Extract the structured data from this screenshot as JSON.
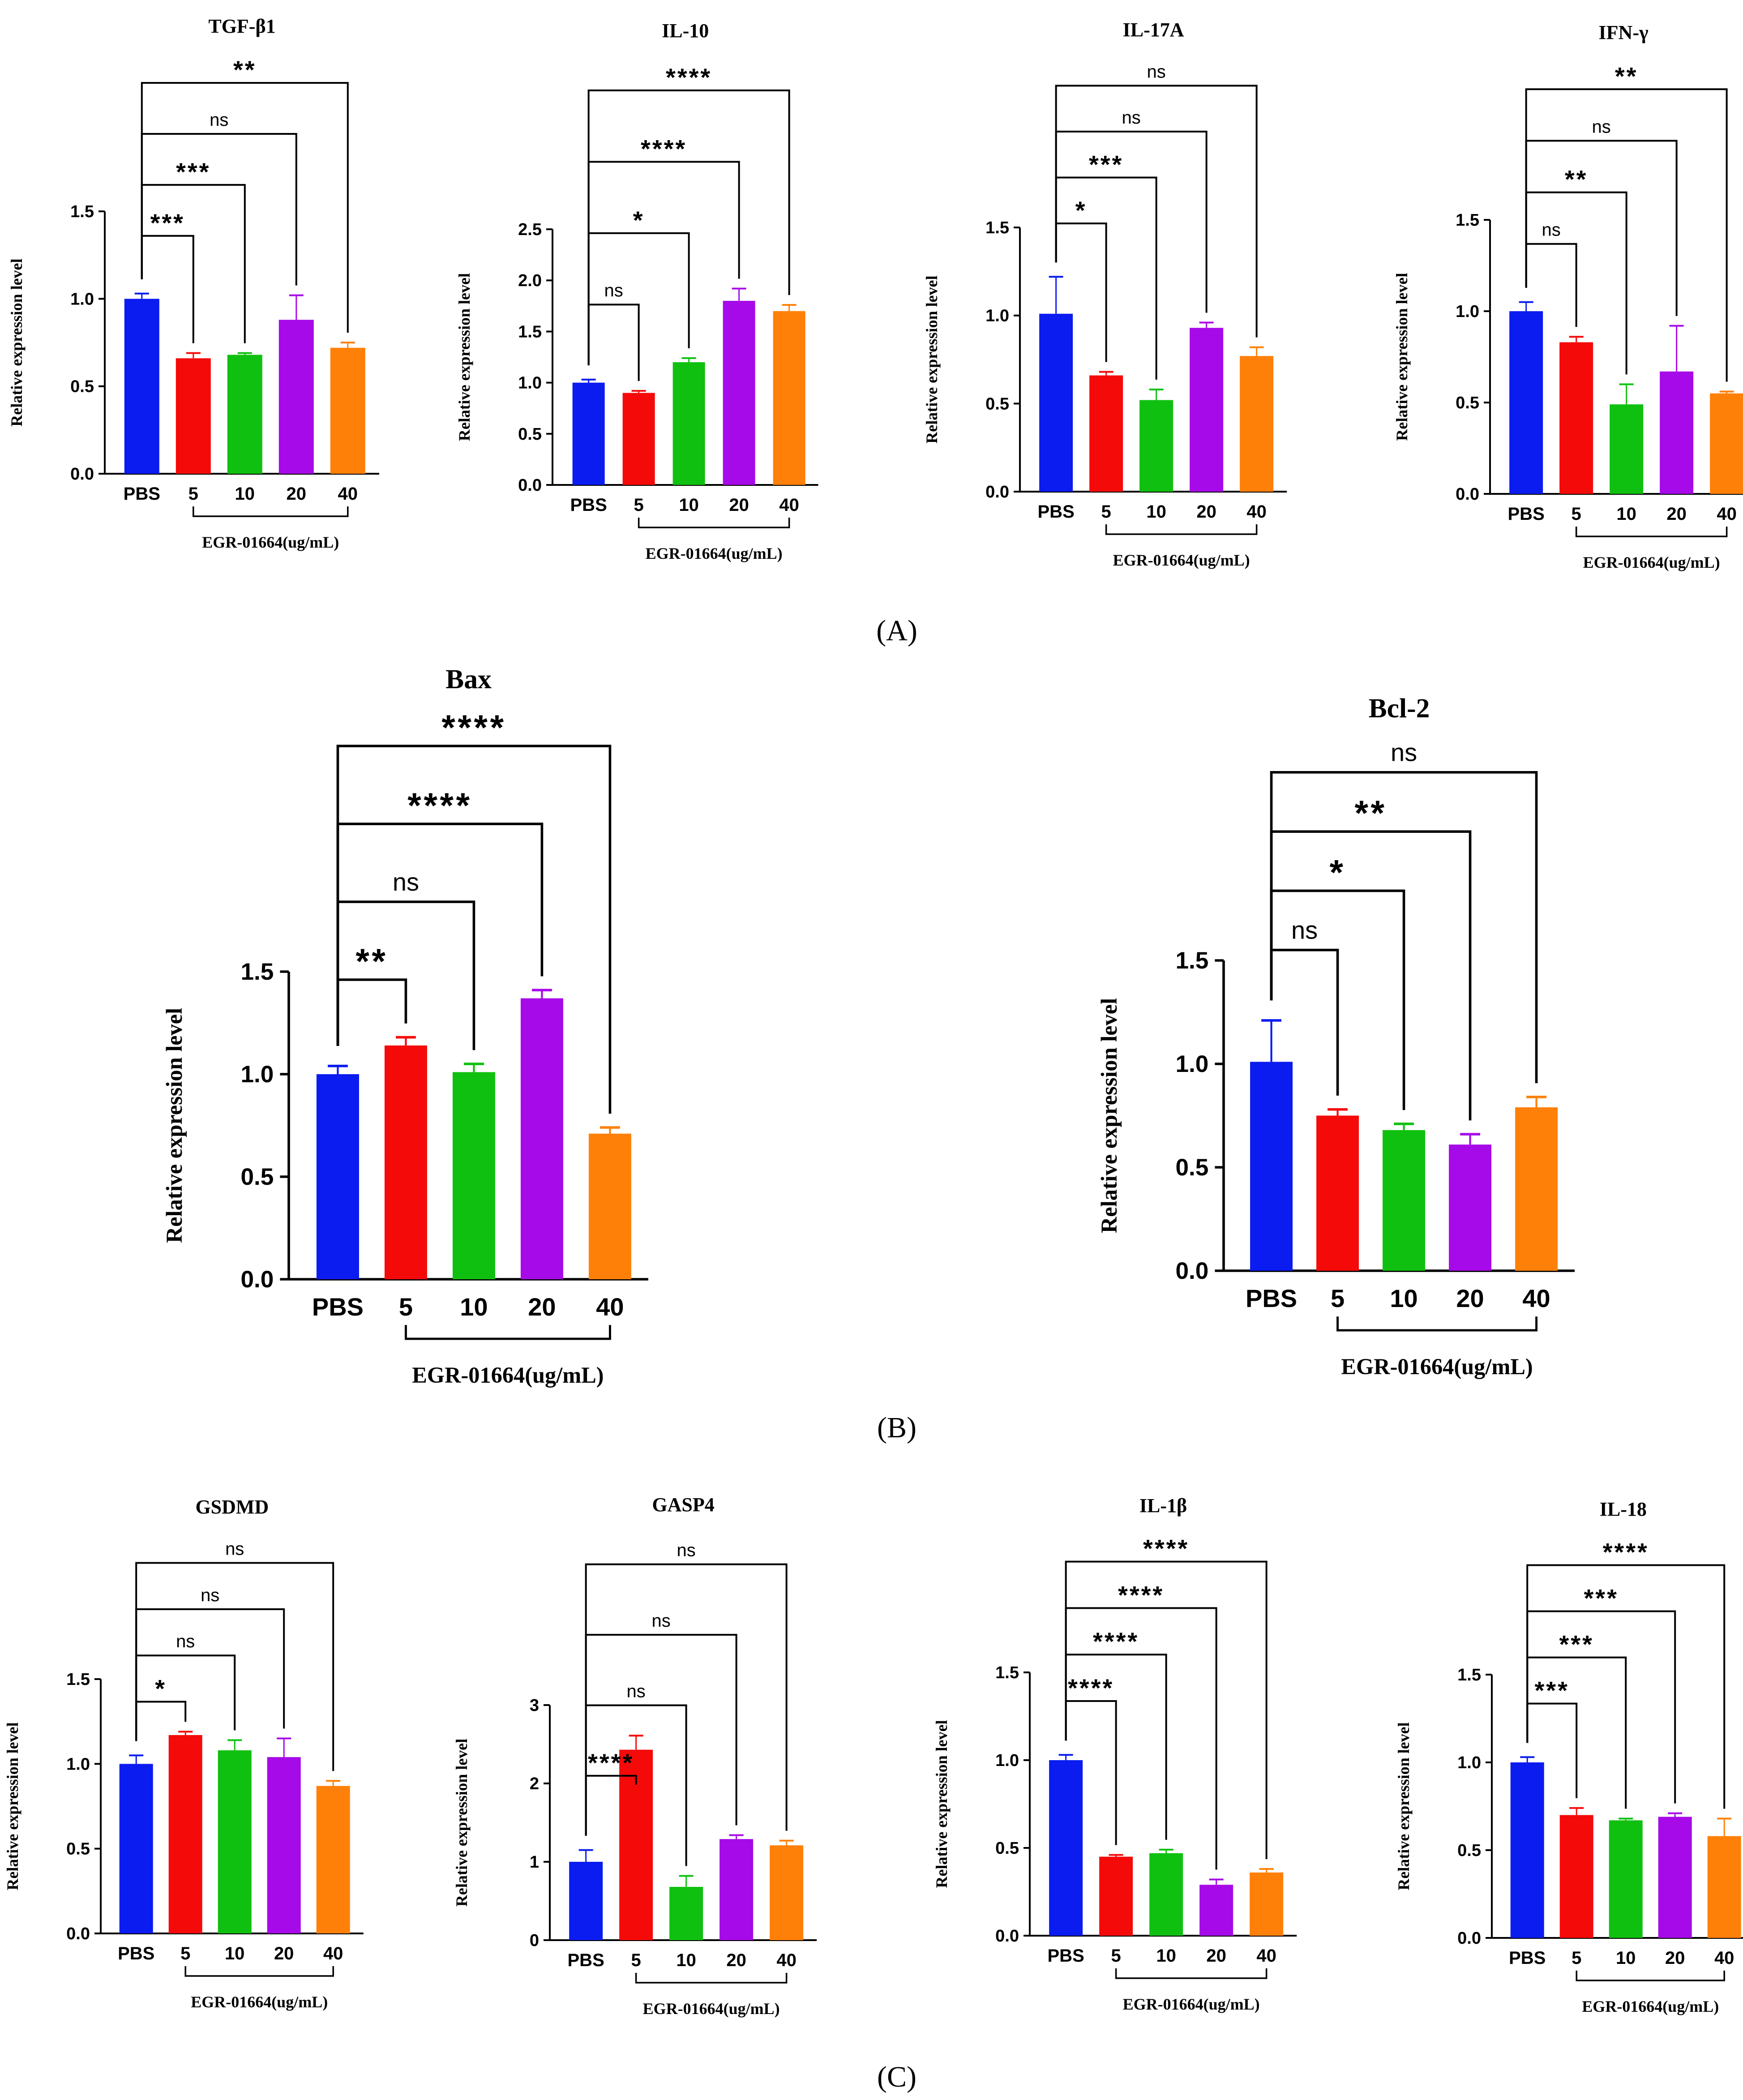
{
  "colors": [
    "#0a1cf0",
    "#f50a0a",
    "#10c010",
    "#a60ae8",
    "#ff8008"
  ],
  "panel_labels": [
    "(A)",
    "(B)",
    "(C)"
  ],
  "chart_data": [
    {
      "id": "tgfb1",
      "type": "bar",
      "title": "TGF-β1",
      "categories": [
        "PBS",
        "5",
        "10",
        "20",
        "40"
      ],
      "values": [
        1.0,
        0.66,
        0.68,
        0.88,
        0.72
      ],
      "errors": [
        0.03,
        0.03,
        0.01,
        0.14,
        0.03
      ],
      "ylim": [
        0,
        1.5
      ],
      "yticks": [
        "0.0",
        "0.5",
        "1.0",
        "1.5"
      ],
      "ylabel": "Relative expression level",
      "xlabel": "EGR-01664(ug/mL)",
      "significance": [
        {
          "to": "5",
          "label": "***"
        },
        {
          "to": "10",
          "label": "***"
        },
        {
          "to": "20",
          "label": "ns"
        },
        {
          "to": "40",
          "label": "**"
        }
      ]
    },
    {
      "id": "il10",
      "type": "bar",
      "title": "IL-10",
      "categories": [
        "PBS",
        "5",
        "10",
        "20",
        "40"
      ],
      "values": [
        1.0,
        0.9,
        1.2,
        1.8,
        1.7
      ],
      "errors": [
        0.03,
        0.02,
        0.04,
        0.12,
        0.06
      ],
      "ylim": [
        0,
        2.5
      ],
      "yticks": [
        "0.0",
        "0.5",
        "1.0",
        "1.5",
        "2.0",
        "2.5"
      ],
      "ylabel": "Relative expression level",
      "xlabel": "EGR-01664(ug/mL)",
      "significance": [
        {
          "to": "5",
          "label": "ns"
        },
        {
          "to": "10",
          "label": "*"
        },
        {
          "to": "20",
          "label": "****"
        },
        {
          "to": "40",
          "label": "****"
        }
      ]
    },
    {
      "id": "il17a",
      "type": "bar",
      "title": "IL-17A",
      "categories": [
        "PBS",
        "5",
        "10",
        "20",
        "40"
      ],
      "values": [
        1.01,
        0.66,
        0.52,
        0.93,
        0.77
      ],
      "errors": [
        0.21,
        0.02,
        0.06,
        0.03,
        0.05
      ],
      "ylim": [
        0,
        1.5
      ],
      "yticks": [
        "0.0",
        "0.5",
        "1.0",
        "1.5"
      ],
      "ylabel": "Relative expression level",
      "xlabel": "EGR-01664(ug/mL)",
      "significance": [
        {
          "to": "5",
          "label": "*"
        },
        {
          "to": "10",
          "label": "***"
        },
        {
          "to": "20",
          "label": "ns"
        },
        {
          "to": "40",
          "label": "ns"
        }
      ]
    },
    {
      "id": "ifng",
      "type": "bar",
      "title": "IFN-γ",
      "categories": [
        "PBS",
        "5",
        "10",
        "20",
        "40"
      ],
      "values": [
        1.0,
        0.83,
        0.49,
        0.67,
        0.55
      ],
      "errors": [
        0.05,
        0.03,
        0.11,
        0.25,
        0.01
      ],
      "ylim": [
        0,
        1.5
      ],
      "yticks": [
        "0.0",
        "0.5",
        "1.0",
        "1.5"
      ],
      "ylabel": "Relative expression level",
      "xlabel": "EGR-01664(ug/mL)",
      "significance": [
        {
          "to": "5",
          "label": "ns"
        },
        {
          "to": "10",
          "label": "**"
        },
        {
          "to": "20",
          "label": "ns"
        },
        {
          "to": "40",
          "label": "**"
        }
      ]
    },
    {
      "id": "bax",
      "type": "bar",
      "title": "Bax",
      "categories": [
        "PBS",
        "5",
        "10",
        "20",
        "40"
      ],
      "values": [
        1.0,
        1.14,
        1.01,
        1.37,
        0.71
      ],
      "errors": [
        0.04,
        0.04,
        0.04,
        0.04,
        0.03
      ],
      "ylim": [
        0,
        1.5
      ],
      "yticks": [
        "0.0",
        "0.5",
        "1.0",
        "1.5"
      ],
      "ylabel": "Relative expression level",
      "xlabel": "EGR-01664(ug/mL)",
      "significance": [
        {
          "to": "5",
          "label": "**"
        },
        {
          "to": "10",
          "label": "ns"
        },
        {
          "to": "20",
          "label": "****"
        },
        {
          "to": "40",
          "label": "****"
        }
      ]
    },
    {
      "id": "bcl2",
      "type": "bar",
      "title": "Bcl-2",
      "categories": [
        "PBS",
        "5",
        "10",
        "20",
        "40"
      ],
      "values": [
        1.01,
        0.75,
        0.68,
        0.61,
        0.79
      ],
      "errors": [
        0.2,
        0.03,
        0.03,
        0.05,
        0.05
      ],
      "ylim": [
        0,
        1.5
      ],
      "yticks": [
        "0.0",
        "0.5",
        "1.0",
        "1.5"
      ],
      "ylabel": "Relative expression level",
      "xlabel": "EGR-01664(ug/mL)",
      "significance": [
        {
          "to": "5",
          "label": "ns"
        },
        {
          "to": "10",
          "label": "*"
        },
        {
          "to": "20",
          "label": "**"
        },
        {
          "to": "40",
          "label": "ns"
        }
      ]
    },
    {
      "id": "gsdmd",
      "type": "bar",
      "title": "GSDMD",
      "categories": [
        "PBS",
        "5",
        "10",
        "20",
        "40"
      ],
      "values": [
        1.0,
        1.17,
        1.08,
        1.04,
        0.87
      ],
      "errors": [
        0.05,
        0.02,
        0.06,
        0.11,
        0.03
      ],
      "ylim": [
        0,
        1.5
      ],
      "yticks": [
        "0.0",
        "0.5",
        "1.0",
        "1.5"
      ],
      "ylabel": "Relative expression level",
      "xlabel": "EGR-01664(ug/mL)",
      "significance": [
        {
          "to": "5",
          "label": "*"
        },
        {
          "to": "10",
          "label": "ns"
        },
        {
          "to": "20",
          "label": "ns"
        },
        {
          "to": "40",
          "label": "ns"
        }
      ]
    },
    {
      "id": "gasp4",
      "type": "bar",
      "title": "GASP4",
      "categories": [
        "PBS",
        "5",
        "10",
        "20",
        "40"
      ],
      "values": [
        1.0,
        2.43,
        0.68,
        1.29,
        1.21
      ],
      "errors": [
        0.15,
        0.18,
        0.14,
        0.05,
        0.06
      ],
      "ylim": [
        0,
        3
      ],
      "yticks": [
        "0",
        "1",
        "2",
        "3"
      ],
      "ylabel": "Relative expression level",
      "xlabel": "EGR-01664(ug/mL)",
      "significance": [
        {
          "to": "5",
          "label": "****"
        },
        {
          "to": "10",
          "label": "ns"
        },
        {
          "to": "20",
          "label": "ns"
        },
        {
          "to": "40",
          "label": "ns"
        }
      ]
    },
    {
      "id": "il1b",
      "type": "bar",
      "title": "IL-1β",
      "categories": [
        "PBS",
        "5",
        "10",
        "20",
        "40"
      ],
      "values": [
        1.0,
        0.45,
        0.47,
        0.29,
        0.36
      ],
      "errors": [
        0.03,
        0.01,
        0.02,
        0.03,
        0.02
      ],
      "ylim": [
        0,
        1.5
      ],
      "yticks": [
        "0.0",
        "0.5",
        "1.0",
        "1.5"
      ],
      "ylabel": "Relative expression level",
      "xlabel": "EGR-01664(ug/mL)",
      "significance": [
        {
          "to": "5",
          "label": "****"
        },
        {
          "to": "10",
          "label": "****"
        },
        {
          "to": "20",
          "label": "****"
        },
        {
          "to": "40",
          "label": "****"
        }
      ]
    },
    {
      "id": "il18",
      "type": "bar",
      "title": "IL-18",
      "categories": [
        "PBS",
        "5",
        "10",
        "20",
        "40"
      ],
      "values": [
        1.0,
        0.7,
        0.67,
        0.69,
        0.58
      ],
      "errors": [
        0.03,
        0.04,
        0.01,
        0.02,
        0.1
      ],
      "ylim": [
        0,
        1.5
      ],
      "yticks": [
        "0.0",
        "0.5",
        "1.0",
        "1.5"
      ],
      "ylabel": "Relative expression level",
      "xlabel": "EGR-01664(ug/mL)",
      "significance": [
        {
          "to": "5",
          "label": "***"
        },
        {
          "to": "10",
          "label": "***"
        },
        {
          "to": "20",
          "label": "***"
        },
        {
          "to": "40",
          "label": "****"
        }
      ]
    }
  ]
}
